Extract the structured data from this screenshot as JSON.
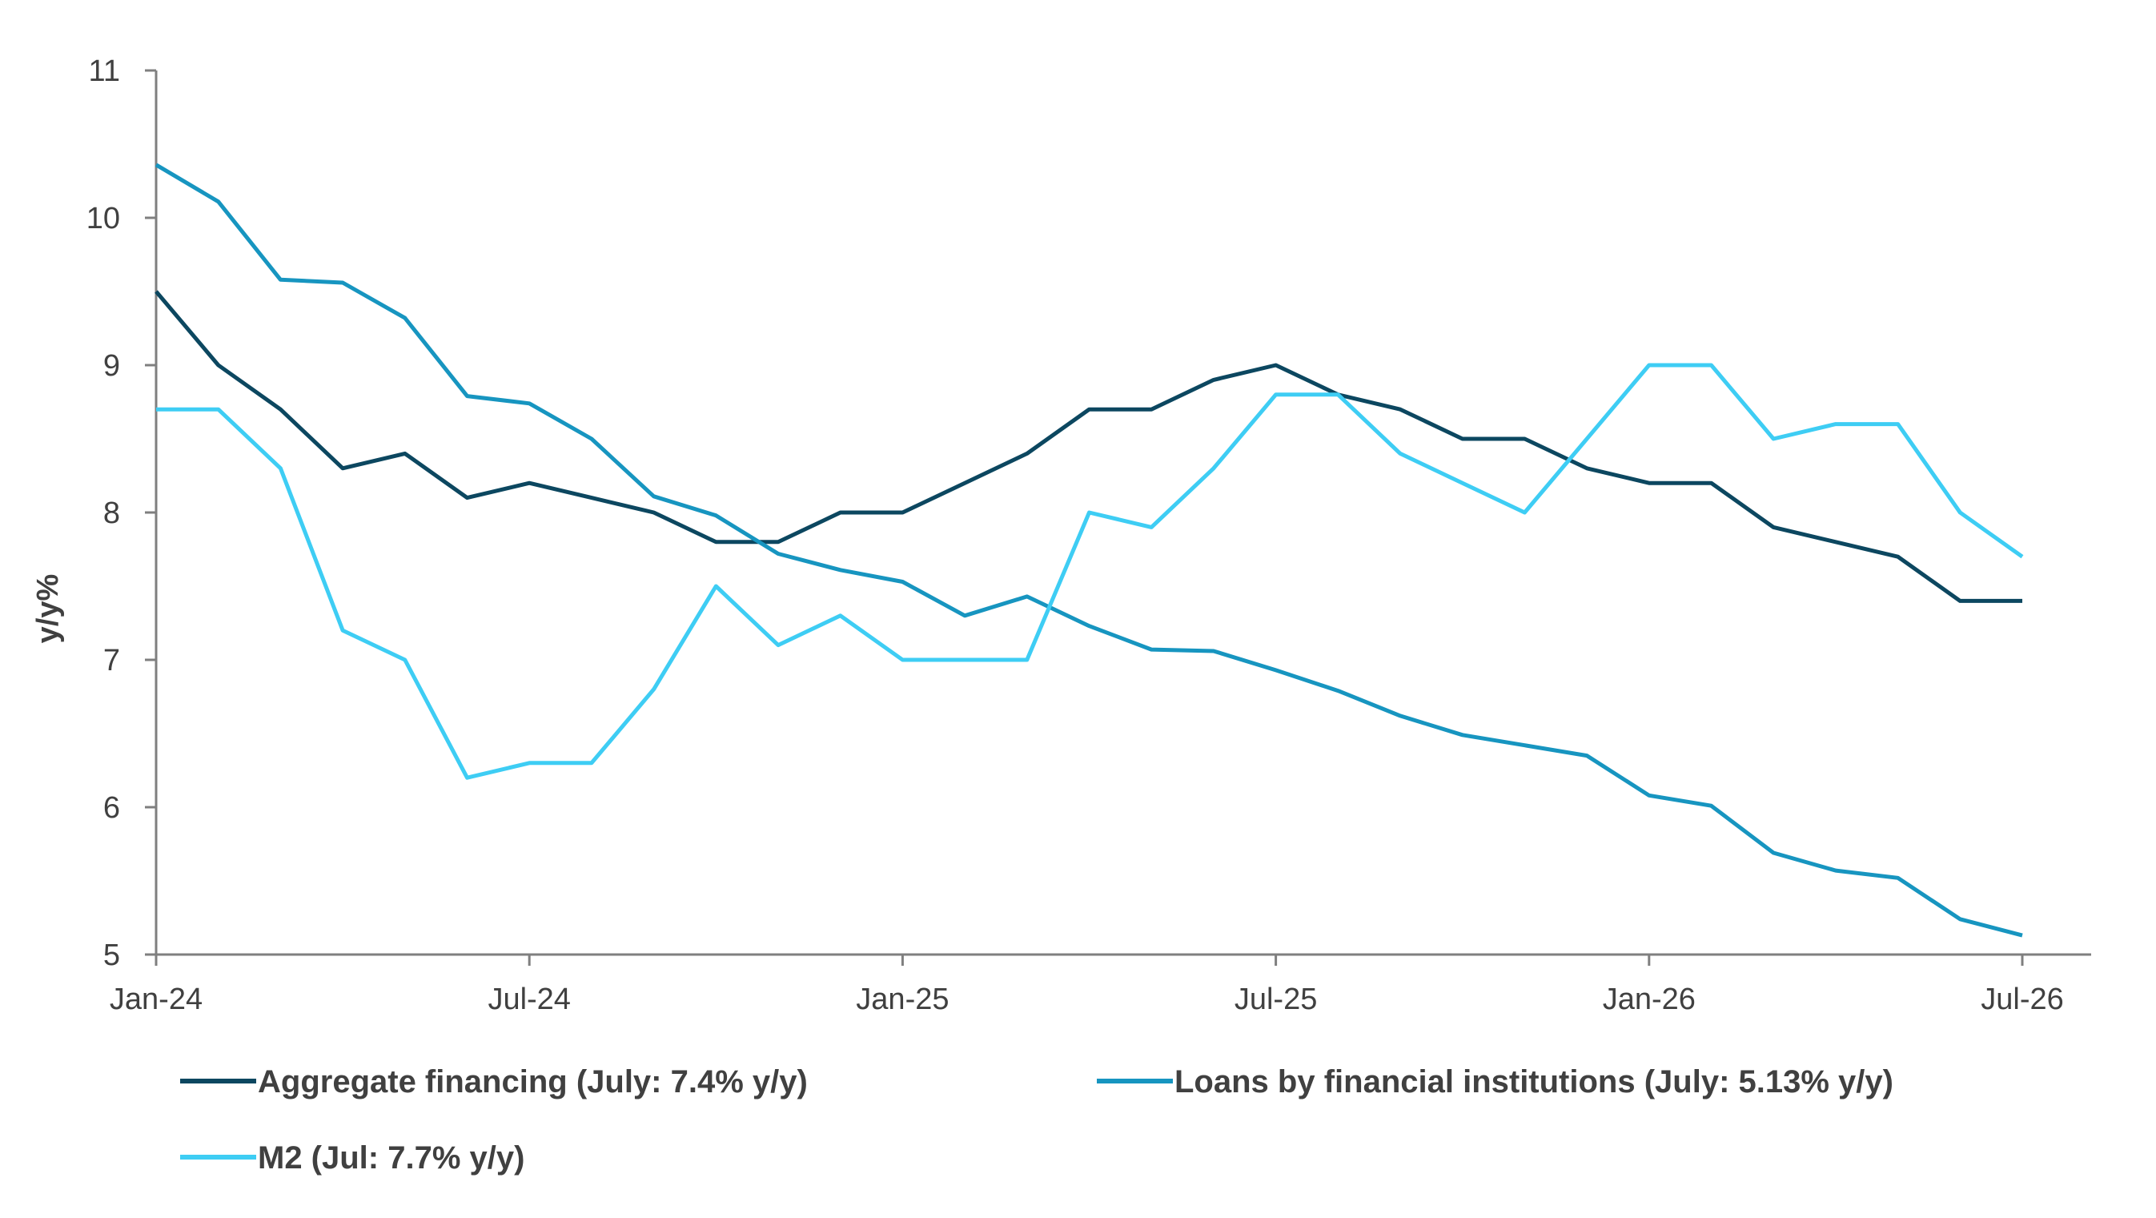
{
  "chart_data": {
    "type": "line",
    "title": "",
    "xlabel": "",
    "ylabel": "y/y%",
    "ylim": [
      5,
      11
    ],
    "yticks": [
      "5",
      "6",
      "7",
      "8",
      "9",
      "10",
      "11"
    ],
    "xticks": [
      "Jan-24",
      "Jul-24",
      "Jan-25",
      "Jul-25",
      "Jan-26",
      "Jul-26"
    ],
    "x": [
      "Jan-24",
      "Feb-24",
      "Mar-24",
      "Apr-24",
      "May-24",
      "Jun-24",
      "Jul-24",
      "Aug-24",
      "Sep-24",
      "Oct-24",
      "Nov-24",
      "Dec-24",
      "Jan-25",
      "Feb-25",
      "Mar-25",
      "Apr-25",
      "May-25",
      "Jun-25",
      "Jul-25",
      "Aug-25",
      "Sep-25",
      "Oct-25",
      "Nov-25",
      "Dec-25",
      "Jan-26",
      "Feb-26",
      "Mar-26",
      "Apr-26",
      "May-26",
      "Jun-26",
      "Jul-26"
    ],
    "series": [
      {
        "name": "Aggregate financing (July: 7.4% y/y)",
        "color": "#0c4760",
        "values": [
          9.5,
          9.0,
          8.7,
          8.3,
          8.4,
          8.1,
          8.2,
          8.1,
          8.0,
          7.8,
          7.8,
          8.0,
          8.0,
          8.2,
          8.4,
          8.7,
          8.7,
          8.9,
          9.0,
          8.8,
          8.7,
          8.5,
          8.5,
          8.3,
          8.2,
          8.2,
          7.9,
          7.8,
          7.7,
          7.4,
          7.4
        ]
      },
      {
        "name": "Loans by financial institutions (July: 5.13% y/y)",
        "color": "#1795c0",
        "values": [
          10.36,
          10.11,
          9.58,
          9.56,
          9.32,
          8.79,
          8.74,
          8.5,
          8.11,
          7.98,
          7.72,
          7.61,
          7.53,
          7.3,
          7.43,
          7.23,
          7.07,
          7.06,
          6.93,
          6.79,
          6.62,
          6.49,
          6.42,
          6.35,
          6.08,
          6.01,
          5.69,
          5.57,
          5.52,
          5.24,
          5.13
        ]
      },
      {
        "name": "M2 (Jul: 7.7% y/y)",
        "color": "#3ecdf4",
        "values": [
          8.7,
          8.7,
          8.3,
          7.2,
          7.0,
          6.2,
          6.3,
          6.3,
          6.8,
          7.5,
          7.1,
          7.3,
          7.0,
          7.0,
          7.0,
          8.0,
          7.9,
          8.3,
          8.8,
          8.8,
          8.4,
          8.2,
          8.0,
          8.5,
          9.0,
          9.0,
          8.5,
          8.6,
          8.6,
          8.0,
          7.7
        ]
      }
    ],
    "legend": "bottom",
    "grid": false
  }
}
